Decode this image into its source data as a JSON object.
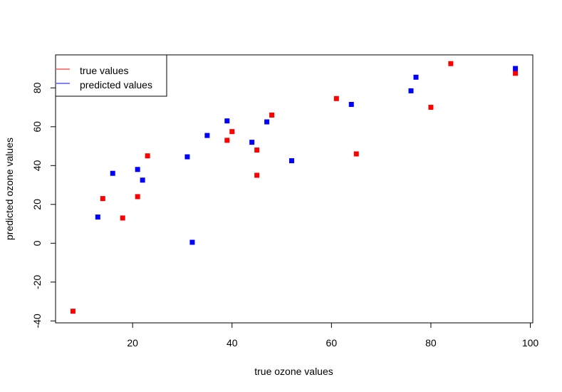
{
  "chart_data": {
    "type": "scatter",
    "title": "",
    "xlabel": "true ozone values",
    "ylabel": "predicted ozone values",
    "xlim": [
      4.5,
      100.5
    ],
    "ylim": [
      -41,
      97
    ],
    "xticks": [
      20,
      40,
      60,
      80,
      100
    ],
    "yticks": [
      -40,
      -20,
      0,
      20,
      40,
      60,
      80
    ],
    "grid": false,
    "legend_position": "top-left",
    "legend": [
      {
        "label": "true values",
        "color": "#ff0000"
      },
      {
        "label": "predicted values",
        "color": "#0000ff"
      }
    ],
    "series": [
      {
        "name": "true values",
        "color": "#ff0000",
        "marker": "square",
        "points": [
          [
            8,
            -35
          ],
          [
            14,
            23
          ],
          [
            18,
            13
          ],
          [
            21,
            24
          ],
          [
            23,
            45
          ],
          [
            39,
            53
          ],
          [
            40,
            57.5
          ],
          [
            45,
            48
          ],
          [
            45,
            35
          ],
          [
            48,
            66
          ],
          [
            61,
            74.5
          ],
          [
            65,
            46
          ],
          [
            80,
            70
          ],
          [
            84,
            92.5
          ],
          [
            97,
            87.5
          ]
        ]
      },
      {
        "name": "predicted values",
        "color": "#0000ff",
        "marker": "square",
        "points": [
          [
            13,
            13.5
          ],
          [
            16,
            36
          ],
          [
            21,
            38
          ],
          [
            22,
            32.5
          ],
          [
            31,
            44.5
          ],
          [
            32,
            0.5
          ],
          [
            35,
            55.5
          ],
          [
            39,
            63
          ],
          [
            44,
            52
          ],
          [
            47,
            62.5
          ],
          [
            52,
            42.5
          ],
          [
            64,
            71.5
          ],
          [
            76,
            78.5
          ],
          [
            77,
            85.5
          ],
          [
            97,
            90
          ]
        ]
      }
    ]
  }
}
